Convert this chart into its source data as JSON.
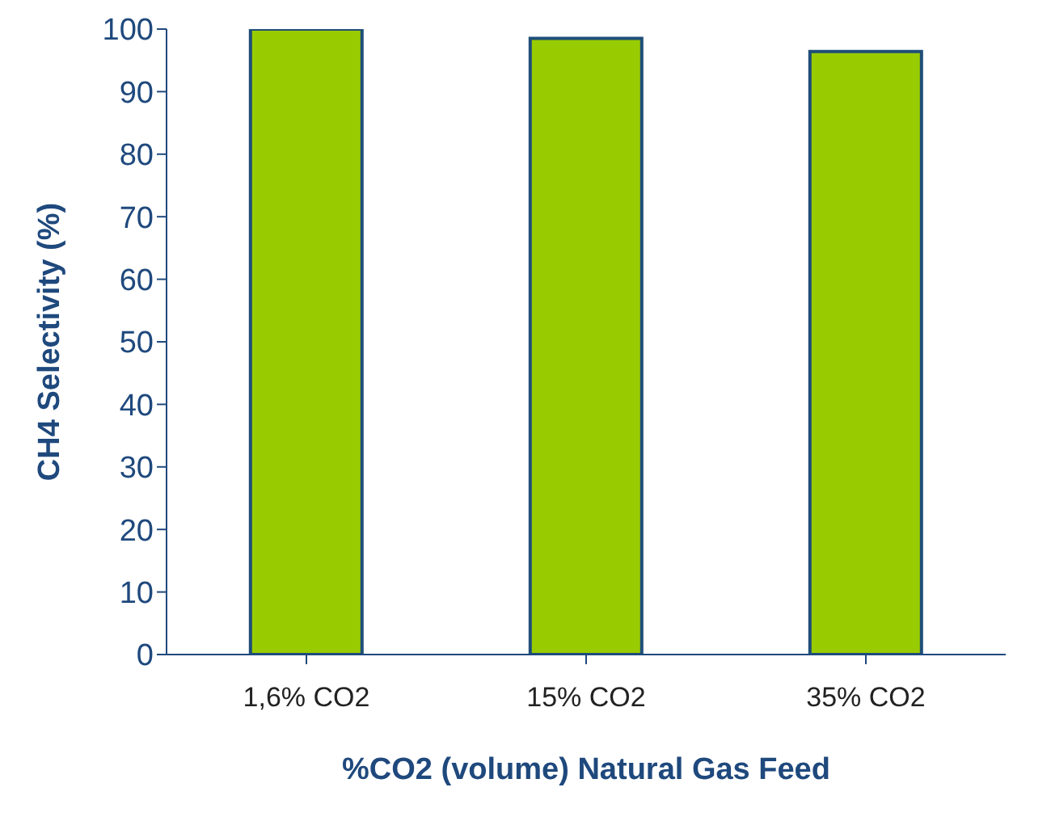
{
  "chart_data": {
    "type": "bar",
    "xlabel": "%CO2 (volume) Natural Gas Feed",
    "ylabel": "CH4 Selectivity (%)",
    "categories": [
      "1,6% CO2",
      "15% CO2",
      "35% CO2"
    ],
    "values": [
      100,
      98.5,
      96.4
    ],
    "color": "#99cc00",
    "ylim": [
      0,
      100
    ],
    "yticks": [
      0,
      10,
      20,
      30,
      40,
      50,
      60,
      70,
      80,
      90,
      100
    ],
    "grid": false,
    "legend": false
  }
}
